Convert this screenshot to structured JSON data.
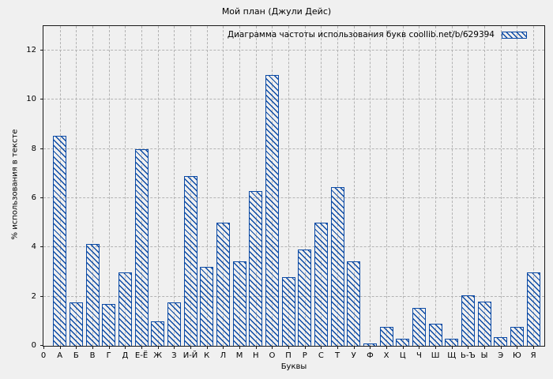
{
  "chart_data": {
    "type": "bar",
    "title": "Мой план (Джули Дейс)",
    "legend_label": "Диаграмма частоты использования букв coollib.net/b/629394",
    "legend_position": "top-right-inside",
    "xlabel": "Буквы",
    "ylabel": "% использования в тексте",
    "ylim": [
      0,
      13
    ],
    "yticks": [
      0,
      2,
      4,
      6,
      8,
      10,
      12
    ],
    "origin_tick_label": "0",
    "grid": true,
    "categories": [
      "А",
      "Б",
      "В",
      "Г",
      "Д",
      "Е-Ё",
      "Ж",
      "З",
      "И-Й",
      "К",
      "Л",
      "М",
      "Н",
      "О",
      "П",
      "Р",
      "С",
      "Т",
      "У",
      "Ф",
      "Х",
      "Ц",
      "Ч",
      "Ш",
      "Щ",
      "Ь-Ъ",
      "Ы",
      "Э",
      "Ю",
      "Я"
    ],
    "values": [
      8.55,
      1.75,
      4.15,
      1.7,
      3.0,
      8.0,
      1.0,
      1.75,
      6.9,
      3.2,
      5.0,
      3.45,
      6.3,
      11.0,
      2.8,
      3.9,
      5.0,
      6.45,
      3.45,
      0.1,
      0.78,
      0.3,
      1.55,
      0.9,
      0.28,
      2.05,
      1.8,
      0.35,
      0.78,
      3.0
    ],
    "bar_color": "#0b4aa5",
    "bar_fill_style": "diagonal-hatch",
    "background_color": "#f0f0f0",
    "grid_color": "#b3b3b3"
  }
}
